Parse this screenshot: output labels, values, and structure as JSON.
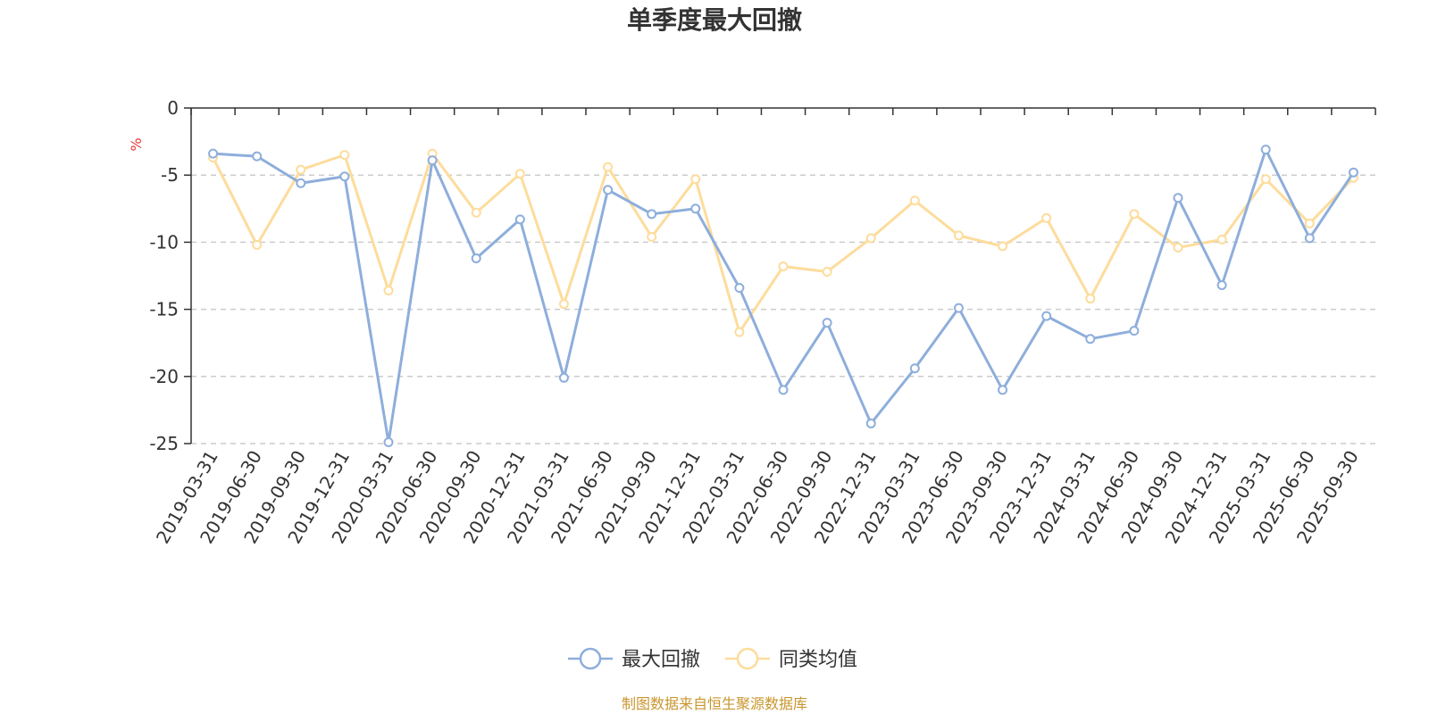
{
  "chart_data": {
    "type": "line",
    "title": "单季度最大回撤",
    "ylabel": "%",
    "ylim": [
      -25,
      0
    ],
    "yticks": [
      0,
      -5,
      -10,
      -15,
      -20,
      -25
    ],
    "grid": true,
    "legend_position": "bottom",
    "categories": [
      "2019-03-31",
      "2019-06-30",
      "2019-09-30",
      "2019-12-31",
      "2020-03-31",
      "2020-06-30",
      "2020-09-30",
      "2020-12-31",
      "2021-03-31",
      "2021-06-30",
      "2021-09-30",
      "2021-12-31",
      "2022-03-31",
      "2022-06-30",
      "2022-09-30",
      "2022-12-31",
      "2023-03-31",
      "2023-06-30",
      "2023-09-30",
      "2023-12-31",
      "2024-03-31",
      "2024-06-30",
      "2024-09-30",
      "2024-12-31",
      "2025-03-31",
      "2025-06-30",
      "2025-09-30"
    ],
    "series": [
      {
        "name": "最大回撤",
        "color": "#8eaedb",
        "values": [
          -3.4,
          -3.6,
          -5.6,
          -5.1,
          -24.9,
          -3.9,
          -11.2,
          -8.3,
          -20.1,
          -6.1,
          -7.9,
          -7.5,
          -13.4,
          -21.0,
          -16.0,
          -23.5,
          -19.4,
          -14.9,
          -21.0,
          -15.5,
          -17.2,
          -16.6,
          -6.7,
          -13.2,
          -3.1,
          -9.7,
          -4.8
        ]
      },
      {
        "name": "同类均值",
        "color": "#fddc9c",
        "values": [
          -3.7,
          -10.2,
          -4.6,
          -3.5,
          -13.6,
          -3.4,
          -7.8,
          -4.9,
          -14.6,
          -4.4,
          -9.6,
          -5.3,
          -16.7,
          -11.8,
          -12.2,
          -9.7,
          -6.9,
          -9.5,
          -10.3,
          -8.2,
          -14.2,
          -7.9,
          -10.4,
          -9.8,
          -5.3,
          -8.6,
          -5.2
        ]
      }
    ]
  },
  "source": "制图数据来自恒生聚源数据库"
}
